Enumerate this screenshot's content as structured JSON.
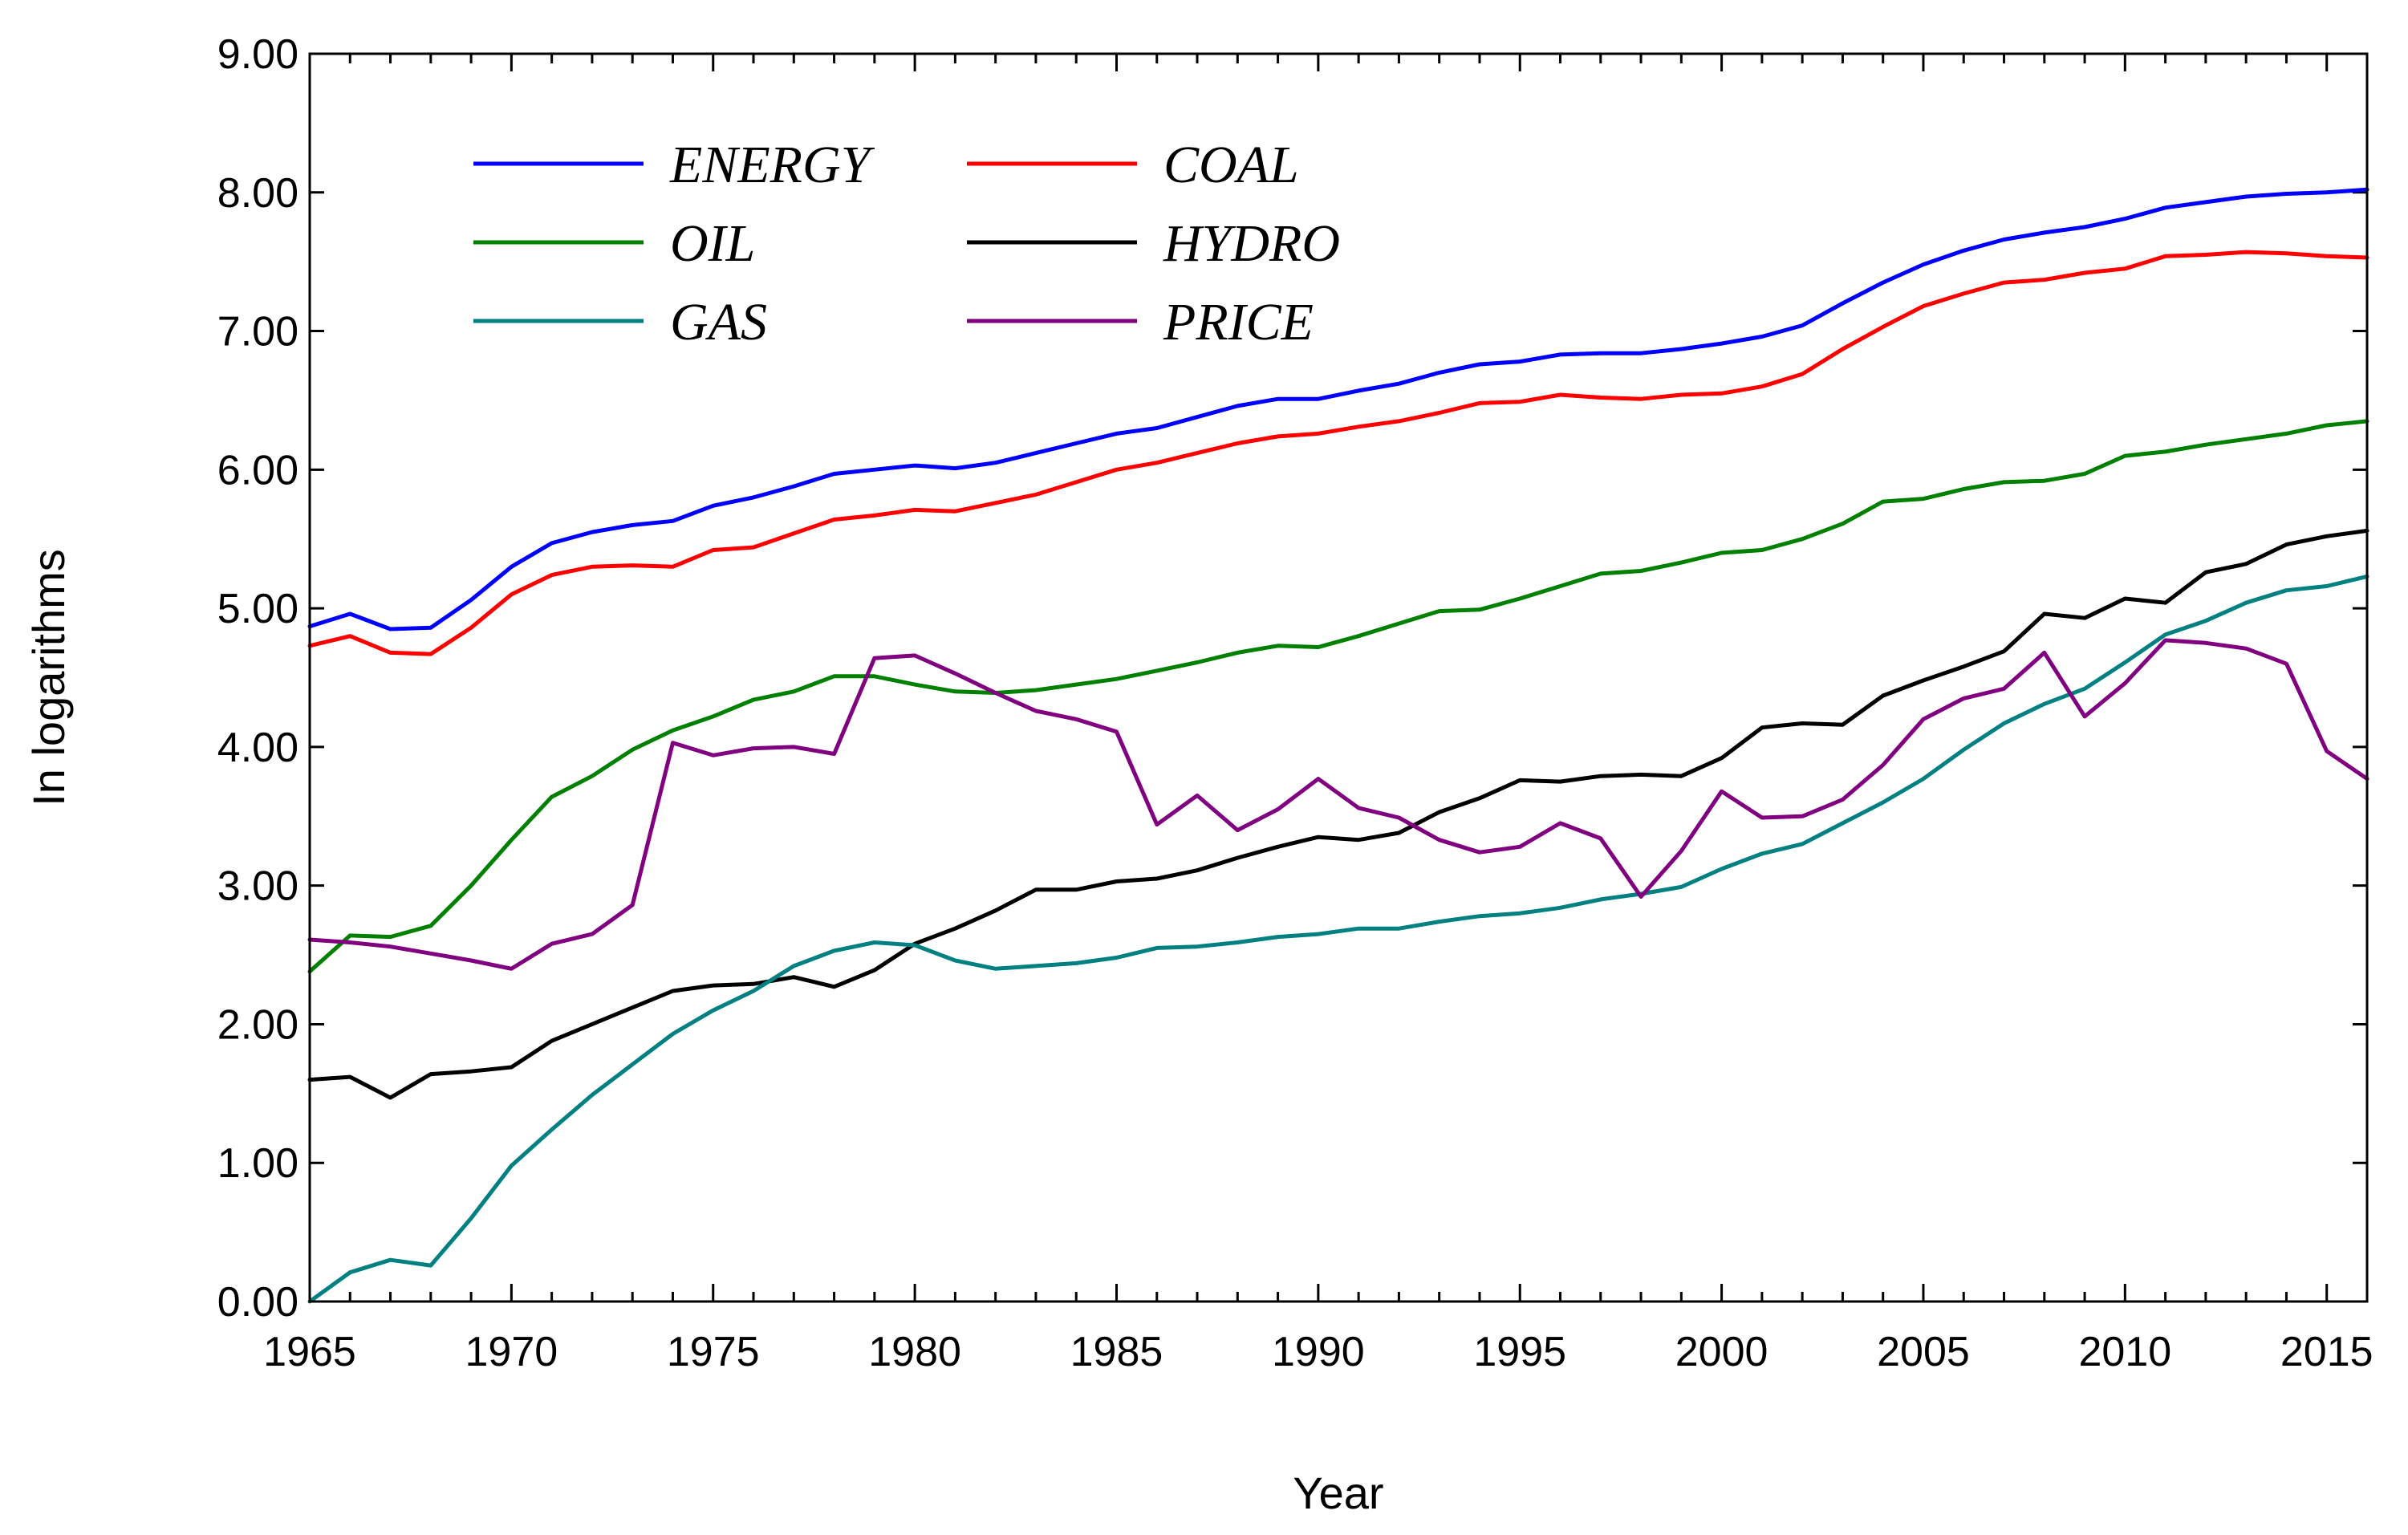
{
  "chart_data": {
    "type": "line",
    "title": "",
    "xlabel": "Year",
    "ylabel": "In logarithms",
    "xlim": [
      1965,
      2016
    ],
    "ylim": [
      0,
      9
    ],
    "x_ticks": [
      1965,
      1970,
      1975,
      1980,
      1985,
      1990,
      1995,
      2000,
      2005,
      2010,
      2015
    ],
    "y_ticks": [
      "0.00",
      "1.00",
      "2.00",
      "3.00",
      "4.00",
      "5.00",
      "6.00",
      "7.00",
      "8.00",
      "9.00"
    ],
    "grid": false,
    "legend_position": "top-left",
    "x": [
      1965,
      1966,
      1967,
      1968,
      1969,
      1970,
      1971,
      1972,
      1973,
      1974,
      1975,
      1976,
      1977,
      1978,
      1979,
      1980,
      1981,
      1982,
      1983,
      1984,
      1985,
      1986,
      1987,
      1988,
      1989,
      1990,
      1991,
      1992,
      1993,
      1994,
      1995,
      1996,
      1997,
      1998,
      1999,
      2000,
      2001,
      2002,
      2003,
      2004,
      2005,
      2006,
      2007,
      2008,
      2009,
      2010,
      2011,
      2012,
      2013,
      2014,
      2015,
      2016
    ],
    "series": [
      {
        "name": "ENERGY",
        "color": "#0000ff",
        "values": [
          4.87,
          4.96,
          4.85,
          4.86,
          5.06,
          5.3,
          5.47,
          5.55,
          5.6,
          5.63,
          5.74,
          5.8,
          5.88,
          5.97,
          6.0,
          6.03,
          6.01,
          6.05,
          6.12,
          6.19,
          6.26,
          6.3,
          6.38,
          6.46,
          6.51,
          6.51,
          6.57,
          6.62,
          6.7,
          6.76,
          6.78,
          6.83,
          6.84,
          6.84,
          6.87,
          6.91,
          6.96,
          7.04,
          7.2,
          7.35,
          7.48,
          7.58,
          7.66,
          7.71,
          7.75,
          7.81,
          7.89,
          7.93,
          7.97,
          7.99,
          8.0,
          8.02
        ]
      },
      {
        "name": "COAL",
        "color": "#ff0000",
        "values": [
          4.73,
          4.8,
          4.68,
          4.67,
          4.86,
          5.1,
          5.24,
          5.3,
          5.31,
          5.3,
          5.42,
          5.44,
          5.54,
          5.64,
          5.67,
          5.71,
          5.7,
          5.76,
          5.82,
          5.91,
          6.0,
          6.05,
          6.12,
          6.19,
          6.24,
          6.26,
          6.31,
          6.35,
          6.41,
          6.48,
          6.49,
          6.54,
          6.52,
          6.51,
          6.54,
          6.55,
          6.6,
          6.69,
          6.87,
          7.03,
          7.18,
          7.27,
          7.35,
          7.37,
          7.42,
          7.45,
          7.54,
          7.55,
          7.57,
          7.56,
          7.54,
          7.53
        ]
      },
      {
        "name": "OIL",
        "color": "#008000",
        "values": [
          2.38,
          2.64,
          2.63,
          2.71,
          3.0,
          3.33,
          3.64,
          3.79,
          3.98,
          4.12,
          4.22,
          4.34,
          4.4,
          4.51,
          4.51,
          4.45,
          4.4,
          4.39,
          4.41,
          4.45,
          4.49,
          4.55,
          4.61,
          4.68,
          4.73,
          4.72,
          4.8,
          4.89,
          4.98,
          4.99,
          5.07,
          5.16,
          5.25,
          5.27,
          5.33,
          5.4,
          5.42,
          5.5,
          5.61,
          5.77,
          5.79,
          5.86,
          5.91,
          5.92,
          5.97,
          6.1,
          6.13,
          6.18,
          6.22,
          6.26,
          6.32,
          6.35
        ]
      },
      {
        "name": "HYDRO",
        "color": "#000000",
        "values": [
          1.6,
          1.62,
          1.47,
          1.64,
          1.66,
          1.69,
          1.88,
          2.0,
          2.12,
          2.24,
          2.28,
          2.29,
          2.34,
          2.27,
          2.39,
          2.58,
          2.69,
          2.82,
          2.97,
          2.97,
          3.03,
          3.05,
          3.11,
          3.2,
          3.28,
          3.35,
          3.33,
          3.38,
          3.53,
          3.63,
          3.76,
          3.75,
          3.79,
          3.8,
          3.79,
          3.92,
          4.14,
          4.17,
          4.16,
          4.37,
          4.48,
          4.58,
          4.69,
          4.96,
          4.93,
          5.07,
          5.04,
          5.26,
          5.32,
          5.46,
          5.52,
          5.56
        ]
      },
      {
        "name": "GAS",
        "color": "#008080",
        "values": [
          0.0,
          0.21,
          0.3,
          0.26,
          0.6,
          0.98,
          1.24,
          1.49,
          1.71,
          1.93,
          2.1,
          2.24,
          2.42,
          2.53,
          2.59,
          2.57,
          2.46,
          2.4,
          2.42,
          2.44,
          2.48,
          2.55,
          2.56,
          2.59,
          2.63,
          2.65,
          2.69,
          2.69,
          2.74,
          2.78,
          2.8,
          2.84,
          2.9,
          2.94,
          2.99,
          3.12,
          3.23,
          3.3,
          3.45,
          3.6,
          3.77,
          3.98,
          4.17,
          4.31,
          4.42,
          4.61,
          4.81,
          4.91,
          5.04,
          5.13,
          5.16,
          5.23
        ]
      },
      {
        "name": "PRICE",
        "color": "#800080",
        "values": [
          2.61,
          2.59,
          2.56,
          2.51,
          2.46,
          2.4,
          2.58,
          2.65,
          2.86,
          4.03,
          3.94,
          3.99,
          4.0,
          3.95,
          4.64,
          4.66,
          4.53,
          4.39,
          4.26,
          4.2,
          4.11,
          3.44,
          3.65,
          3.4,
          3.55,
          3.77,
          3.56,
          3.49,
          3.33,
          3.24,
          3.28,
          3.45,
          3.34,
          2.92,
          3.25,
          3.68,
          3.49,
          3.5,
          3.62,
          3.87,
          4.2,
          4.35,
          4.42,
          4.68,
          4.22,
          4.46,
          4.77,
          4.75,
          4.71,
          4.6,
          3.97,
          3.77
        ]
      }
    ],
    "legend_order": [
      "ENERGY",
      "COAL",
      "OIL",
      "HYDRO",
      "GAS",
      "PRICE"
    ]
  }
}
